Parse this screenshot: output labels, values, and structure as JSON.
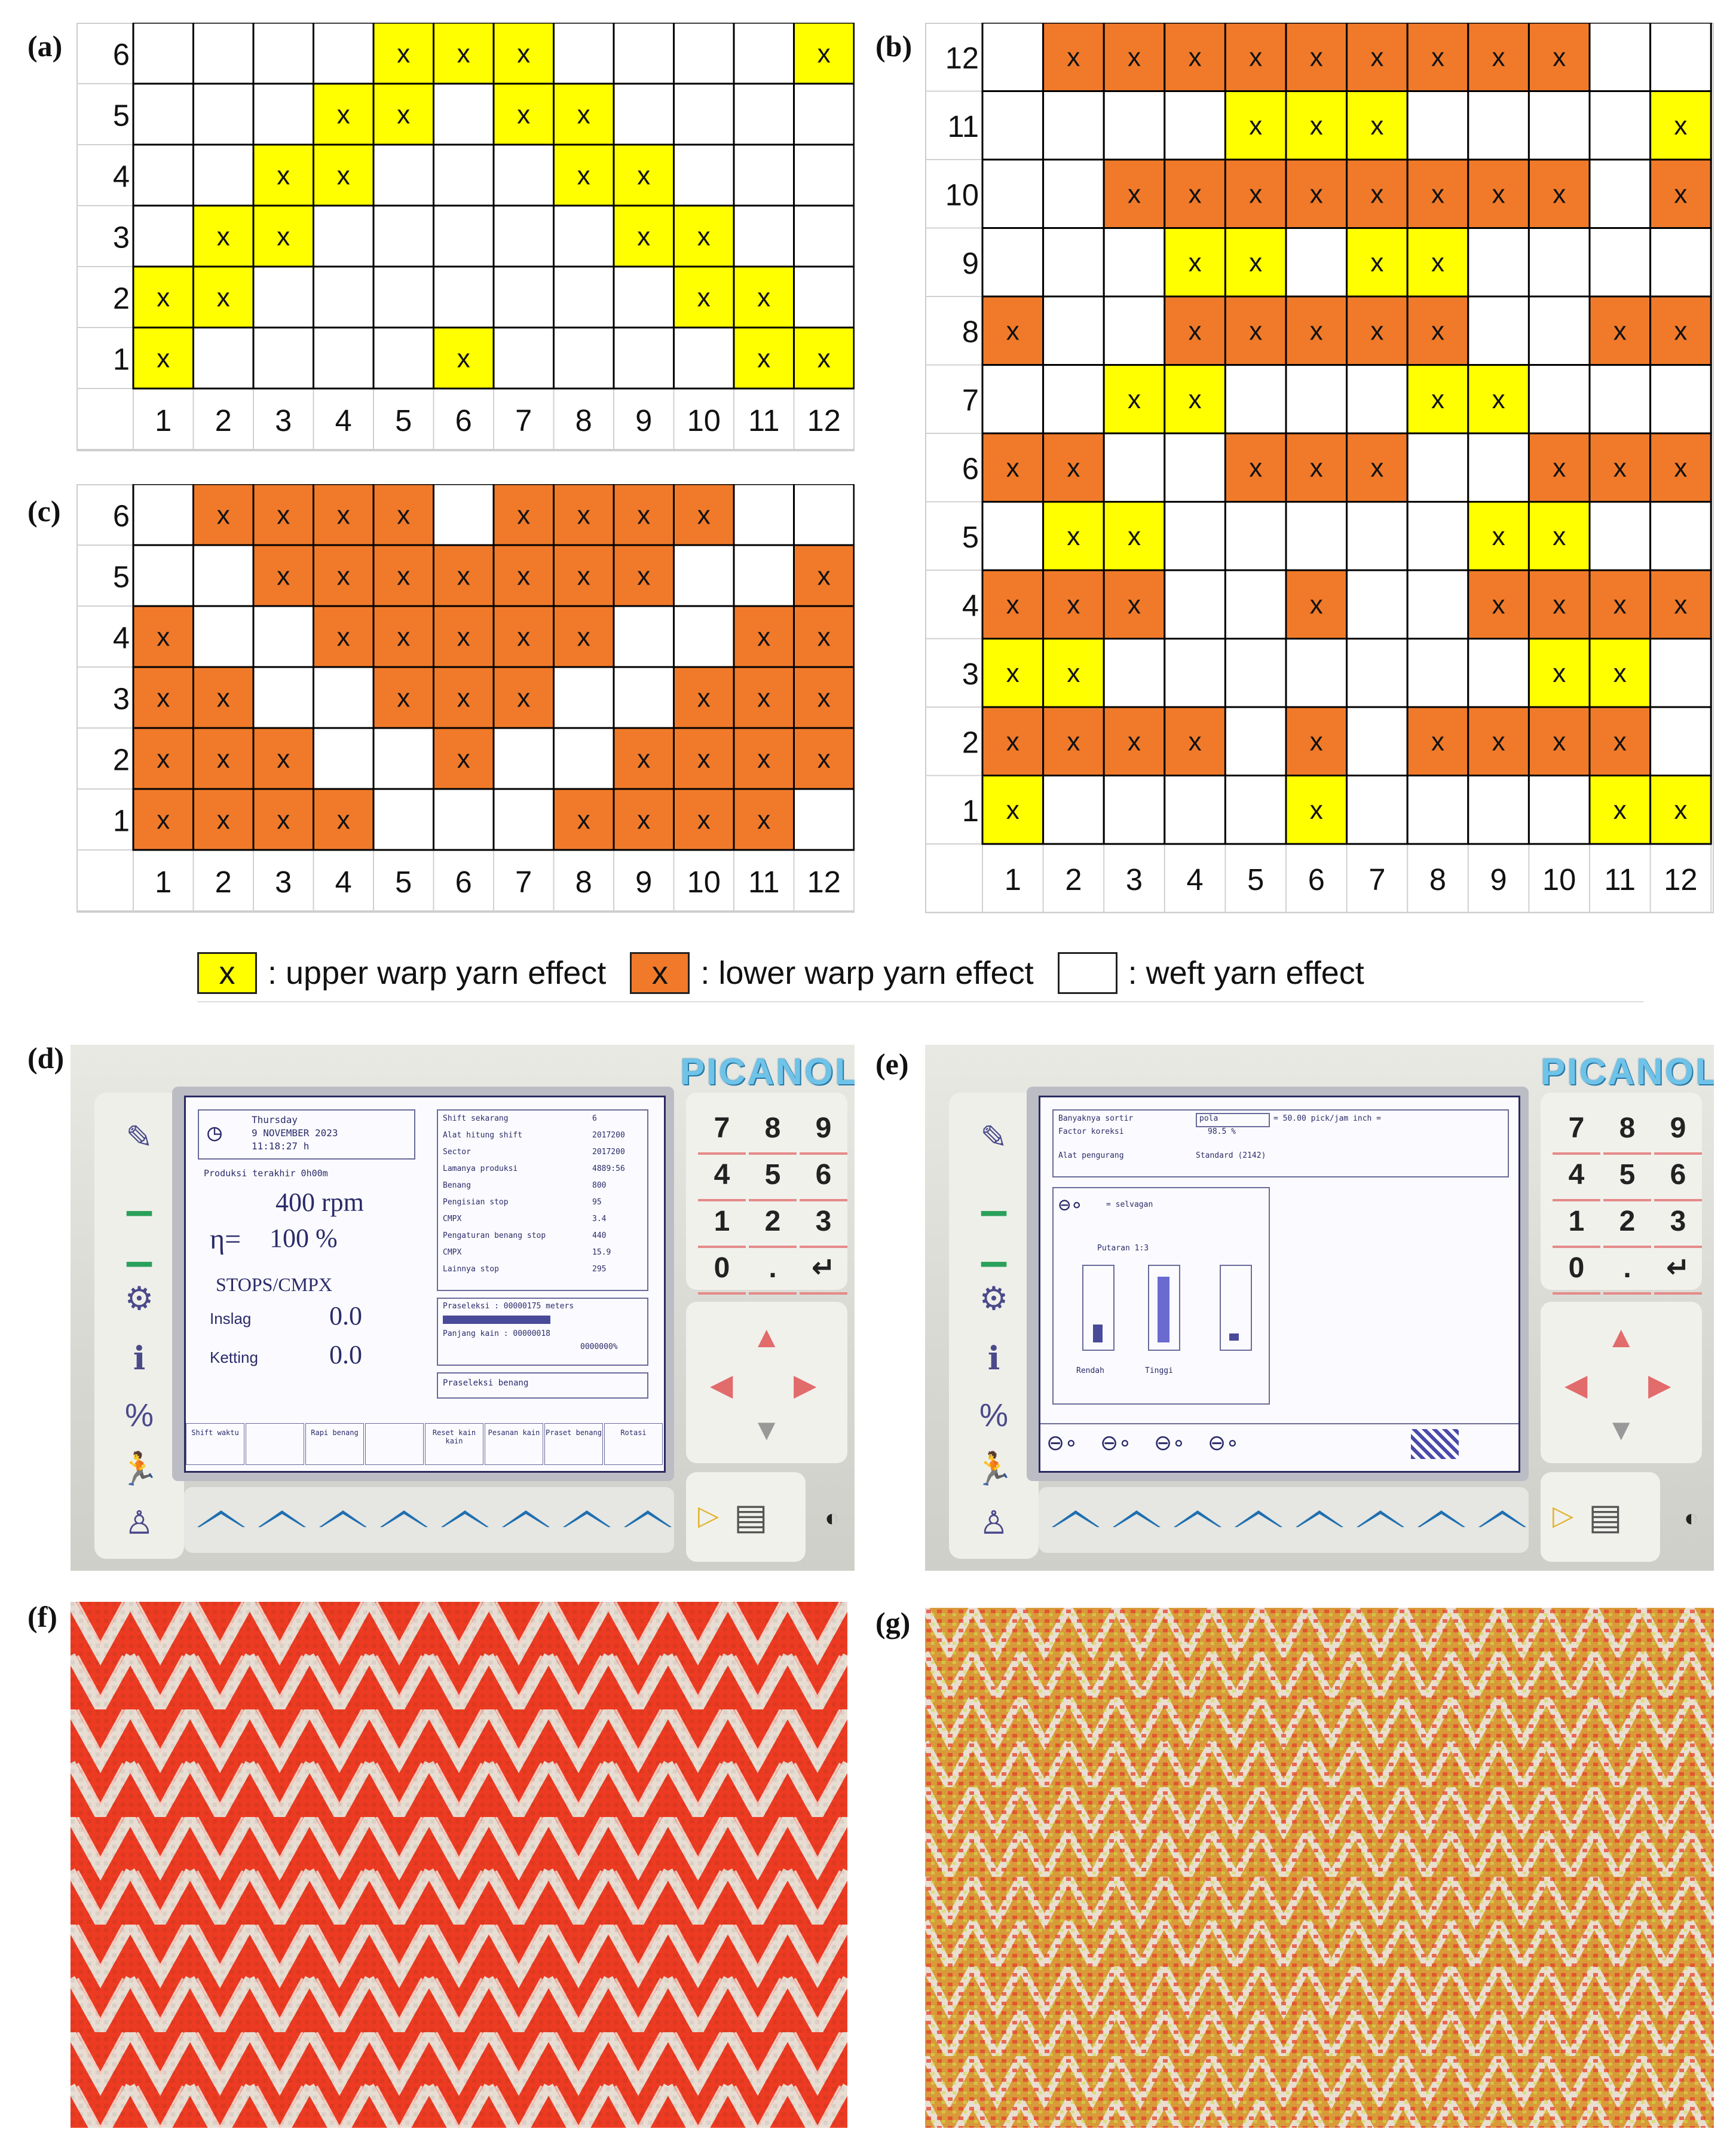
{
  "figure": {
    "panels": [
      {
        "id": "a",
        "label": "(a)"
      },
      {
        "id": "b",
        "label": "(b)"
      },
      {
        "id": "c",
        "label": "(c)"
      },
      {
        "id": "d",
        "label": "(d)"
      },
      {
        "id": "e",
        "label": "(e)"
      },
      {
        "id": "f",
        "label": "(f)"
      },
      {
        "id": "g",
        "label": "(g)"
      }
    ]
  },
  "weave_grids": {
    "mark": "x",
    "a": {
      "rows": 6,
      "cols": 12,
      "row_labels": [
        "1",
        "2",
        "3",
        "4",
        "5",
        "6"
      ],
      "col_labels": [
        "1",
        "2",
        "3",
        "4",
        "5",
        "6",
        "7",
        "8",
        "9",
        "10",
        "11",
        "12"
      ],
      "cells_top_to_bottom": [
        "....UUU....U",
        "...UU.UU....",
        "..UU...UU...",
        ".UU.....UU..",
        "UU.......UU.",
        "U....U....UU"
      ]
    },
    "b": {
      "rows": 12,
      "cols": 12,
      "row_labels": [
        "1",
        "2",
        "3",
        "4",
        "5",
        "6",
        "7",
        "8",
        "9",
        "10",
        "11",
        "12"
      ],
      "col_labels": [
        "1",
        "2",
        "3",
        "4",
        "5",
        "6",
        "7",
        "8",
        "9",
        "10",
        "11",
        "12"
      ],
      "cells_top_to_bottom": [
        ".LLLLLLLLL..",
        "....UUU....U",
        "..LLLLLLLL.L",
        "...UU.UU....",
        "L..LLLLL..LL",
        "..UU...UU...",
        "LL..LLL..LLL",
        ".UU.....UU..",
        "LLL..L..LLLL",
        "UU.......UU.",
        "LLLL.L.LLLL.",
        "U....U....UU"
      ]
    },
    "c": {
      "rows": 6,
      "cols": 12,
      "row_labels": [
        "1",
        "2",
        "3",
        "4",
        "5",
        "6"
      ],
      "col_labels": [
        "1",
        "2",
        "3",
        "4",
        "5",
        "6",
        "7",
        "8",
        "9",
        "10",
        "11",
        "12"
      ],
      "cells_top_to_bottom": [
        ".LLLL.LLLL..",
        "..LLLLLLL..L",
        "L..LLLLL..LL",
        "LL..LLL..LLL",
        "LLL..L..LLLL",
        "LLLL...LLLL."
      ]
    }
  },
  "legend": {
    "items": [
      {
        "symbol": "x",
        "text": ": upper warp yarn effect",
        "color": "#ffff00"
      },
      {
        "symbol": "x",
        "text": ": lower warp yarn  effect",
        "color": "#f07a2a"
      },
      {
        "symbol": "",
        "text": ": weft yarn  effect",
        "color": "#ffffff"
      }
    ]
  },
  "colors": {
    "upper_warp": "#ffff00",
    "lower_warp": "#f07a2a",
    "weft": "#ffffff",
    "grid_line": "#000000",
    "label_line": "#d0d0d0"
  },
  "machine_d": {
    "brand": "PICANOL",
    "keypad": [
      "7",
      "8",
      "9",
      "4",
      "5",
      "6",
      "1",
      "2",
      "3",
      "0",
      ".",
      "↵"
    ],
    "screen": {
      "day": "Thursday",
      "date": "9 NOVEMBER  2023",
      "time": "11:18:27 h",
      "produksi": "Produksi terakhir 0h00m",
      "rpm": "400 rpm",
      "eta_symbol": "η=",
      "eta_value": "100  %",
      "stops_title": "STOPS/CMPX",
      "inslag_label": "Inslag",
      "inslag_value": "0.0",
      "ketting_label": "Ketting",
      "ketting_value": "0.0",
      "right_rows": [
        [
          "Shift sekarang",
          "6"
        ],
        [
          "Alat hitung shift",
          "2017200"
        ],
        [
          "Sector",
          "2017200"
        ],
        [
          "Lamanya produksi",
          "4889:56"
        ],
        [
          "Benang",
          "800"
        ],
        [
          "Pengisian stop",
          "95"
        ],
        [
          "CMPX",
          "3.4"
        ],
        [
          "Pengaturan benang stop",
          "440"
        ],
        [
          "CMPX",
          "15.9"
        ],
        [
          "Lainnya stop",
          "295"
        ]
      ],
      "prasetkain_label": "Praseleksi : 00000175 meters",
      "panjang_label": "Panjang kain : 00000018",
      "panjang_value": "0000000%",
      "praseleksi_benang": "Praseleksi benang",
      "buttons": [
        "Shift waktu",
        "",
        "Rapi benang",
        "",
        "Reset kain kain",
        "Pesanan kain",
        "Praset benang",
        "Rotasi"
      ]
    }
  },
  "machine_e": {
    "brand": "PICANOL",
    "keypad": [
      "7",
      "8",
      "9",
      "4",
      "5",
      "6",
      "1",
      "2",
      "3",
      "0",
      ".",
      "↵"
    ],
    "screen": {
      "row1_label": "Banyaknya sortir",
      "row1_field": "pola",
      "row1_value": "= 50.00 pick/jam inch =",
      "row2_label": "Factor koreksi",
      "row2_value": "98.5 %",
      "row3_label": "Alat pengurang",
      "row3_value": "Standard (2142)",
      "selvage_label": "= selvagan",
      "putaran_label": "Putaran 1:3",
      "rendah_label": "Rendah",
      "tinggi_label": "Tinggi"
    }
  }
}
